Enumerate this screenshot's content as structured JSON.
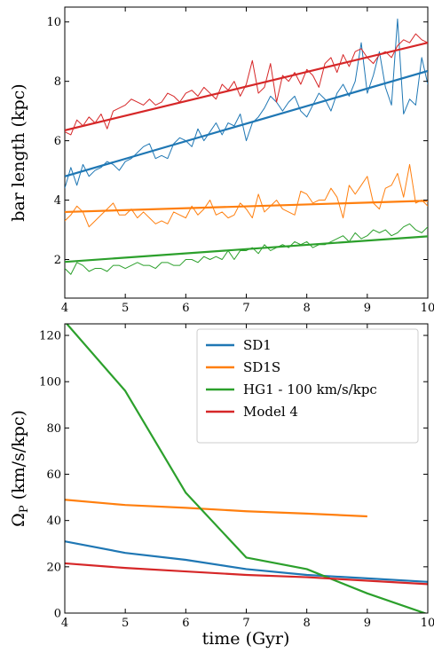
{
  "colors": {
    "SD1": "#1f77b4",
    "SD1S": "#ff7f0e",
    "HG1": "#2ca02c",
    "Model4": "#d62728"
  },
  "chart_data": [
    {
      "type": "line",
      "xlabel": "",
      "ylabel": "bar length (kpc)",
      "xlim": [
        4,
        10
      ],
      "ylim": [
        0.7,
        10.5
      ],
      "xticks": [
        "4",
        "5",
        "6",
        "7",
        "8",
        "9",
        "10"
      ],
      "yticks": [
        "2",
        "4",
        "6",
        "8",
        "10"
      ],
      "series": [
        {
          "key": "SD1",
          "x": [
            4.0,
            4.1,
            4.2,
            4.3,
            4.4,
            4.5,
            4.6,
            4.7,
            4.8,
            4.9,
            5.0,
            5.1,
            5.2,
            5.3,
            5.4,
            5.5,
            5.6,
            5.7,
            5.8,
            5.9,
            6.0,
            6.1,
            6.2,
            6.3,
            6.4,
            6.5,
            6.6,
            6.7,
            6.8,
            6.9,
            7.0,
            7.1,
            7.2,
            7.3,
            7.4,
            7.5,
            7.6,
            7.7,
            7.8,
            7.9,
            8.0,
            8.1,
            8.2,
            8.3,
            8.4,
            8.5,
            8.6,
            8.7,
            8.8,
            8.9,
            9.0,
            9.1,
            9.2,
            9.3,
            9.4,
            9.5,
            9.6,
            9.7,
            9.8,
            9.9,
            10.0
          ],
          "y": [
            4.4,
            5.1,
            4.5,
            5.2,
            4.8,
            5.0,
            5.1,
            5.3,
            5.2,
            5.0,
            5.3,
            5.4,
            5.6,
            5.8,
            5.9,
            5.4,
            5.5,
            5.4,
            5.9,
            6.1,
            6.0,
            5.8,
            6.4,
            6.0,
            6.3,
            6.6,
            6.2,
            6.6,
            6.5,
            6.9,
            6.0,
            6.6,
            6.8,
            7.1,
            7.5,
            7.3,
            7.0,
            7.3,
            7.5,
            7.0,
            6.8,
            7.2,
            7.6,
            7.4,
            7.0,
            7.6,
            7.9,
            7.5,
            8.0,
            9.3,
            7.6,
            8.2,
            9.0,
            7.8,
            7.2,
            10.1,
            6.9,
            7.4,
            7.2,
            8.8,
            7.9
          ]
        },
        {
          "key": "SD1",
          "x": [
            4,
            10
          ],
          "y": [
            4.8,
            8.35
          ]
        },
        {
          "key": "SD1S",
          "x": [
            4.0,
            4.1,
            4.2,
            4.3,
            4.4,
            4.5,
            4.6,
            4.7,
            4.8,
            4.9,
            5.0,
            5.1,
            5.2,
            5.3,
            5.4,
            5.5,
            5.6,
            5.7,
            5.8,
            5.9,
            6.0,
            6.1,
            6.2,
            6.3,
            6.4,
            6.5,
            6.6,
            6.7,
            6.8,
            6.9,
            7.0,
            7.1,
            7.2,
            7.3,
            7.4,
            7.5,
            7.6,
            7.7,
            7.8,
            7.9,
            8.0,
            8.1,
            8.2,
            8.3,
            8.4,
            8.5,
            8.6,
            8.7,
            8.8,
            8.9,
            9.0,
            9.1,
            9.2,
            9.3,
            9.4,
            9.5,
            9.6,
            9.7,
            9.8,
            9.9,
            10.0
          ],
          "y": [
            3.3,
            3.5,
            3.8,
            3.6,
            3.1,
            3.3,
            3.5,
            3.7,
            3.9,
            3.5,
            3.5,
            3.7,
            3.4,
            3.6,
            3.4,
            3.2,
            3.3,
            3.2,
            3.6,
            3.5,
            3.4,
            3.8,
            3.5,
            3.7,
            4.0,
            3.5,
            3.6,
            3.4,
            3.5,
            3.9,
            3.7,
            3.4,
            4.2,
            3.6,
            3.8,
            4.0,
            3.7,
            3.6,
            3.5,
            4.3,
            4.2,
            3.9,
            4.0,
            4.0,
            4.4,
            4.1,
            3.4,
            4.5,
            4.2,
            4.5,
            4.8,
            3.9,
            3.7,
            4.4,
            4.5,
            4.9,
            4.1,
            5.2,
            3.9,
            4.0,
            3.8
          ]
        },
        {
          "key": "SD1S",
          "x": [
            4,
            10
          ],
          "y": [
            3.6,
            3.98
          ]
        },
        {
          "key": "HG1",
          "x": [
            4.0,
            4.1,
            4.2,
            4.3,
            4.4,
            4.5,
            4.6,
            4.7,
            4.8,
            4.9,
            5.0,
            5.1,
            5.2,
            5.3,
            5.4,
            5.5,
            5.6,
            5.7,
            5.8,
            5.9,
            6.0,
            6.1,
            6.2,
            6.3,
            6.4,
            6.5,
            6.6,
            6.7,
            6.8,
            6.9,
            7.0,
            7.1,
            7.2,
            7.3,
            7.4,
            7.5,
            7.6,
            7.7,
            7.8,
            7.9,
            8.0,
            8.1,
            8.2,
            8.3,
            8.4,
            8.5,
            8.6,
            8.7,
            8.8,
            8.9,
            9.0,
            9.1,
            9.2,
            9.3,
            9.4,
            9.5,
            9.6,
            9.7,
            9.8,
            9.9,
            10.0
          ],
          "y": [
            1.7,
            1.5,
            1.9,
            1.8,
            1.6,
            1.7,
            1.7,
            1.6,
            1.8,
            1.8,
            1.7,
            1.8,
            1.9,
            1.8,
            1.8,
            1.7,
            1.9,
            1.9,
            1.8,
            1.8,
            2.0,
            2.0,
            1.9,
            2.1,
            2.0,
            2.1,
            2.0,
            2.3,
            2.0,
            2.3,
            2.3,
            2.4,
            2.2,
            2.5,
            2.3,
            2.4,
            2.5,
            2.4,
            2.6,
            2.5,
            2.6,
            2.4,
            2.5,
            2.5,
            2.6,
            2.7,
            2.8,
            2.6,
            2.9,
            2.7,
            2.8,
            3.0,
            2.9,
            3.0,
            2.8,
            2.9,
            3.1,
            3.2,
            3.0,
            2.9,
            3.1
          ]
        },
        {
          "key": "HG1",
          "x": [
            4,
            10
          ],
          "y": [
            1.92,
            2.78
          ]
        },
        {
          "key": "Model4",
          "x": [
            4.0,
            4.1,
            4.2,
            4.3,
            4.4,
            4.5,
            4.6,
            4.7,
            4.8,
            4.9,
            5.0,
            5.1,
            5.2,
            5.3,
            5.4,
            5.5,
            5.6,
            5.7,
            5.8,
            5.9,
            6.0,
            6.1,
            6.2,
            6.3,
            6.4,
            6.5,
            6.6,
            6.7,
            6.8,
            6.9,
            7.0,
            7.1,
            7.2,
            7.3,
            7.4,
            7.5,
            7.6,
            7.7,
            7.8,
            7.9,
            8.0,
            8.1,
            8.2,
            8.3,
            8.4,
            8.5,
            8.6,
            8.7,
            8.8,
            8.9,
            9.0,
            9.1,
            9.2,
            9.3,
            9.4,
            9.5,
            9.6,
            9.7,
            9.8,
            9.9,
            10.0
          ],
          "y": [
            6.3,
            6.2,
            6.7,
            6.5,
            6.8,
            6.6,
            6.9,
            6.4,
            7.0,
            7.1,
            7.2,
            7.4,
            7.3,
            7.2,
            7.4,
            7.2,
            7.3,
            7.6,
            7.5,
            7.3,
            7.6,
            7.7,
            7.5,
            7.8,
            7.6,
            7.4,
            7.9,
            7.7,
            8.0,
            7.5,
            7.9,
            8.7,
            7.6,
            7.8,
            8.6,
            7.3,
            8.2,
            8.0,
            8.3,
            7.9,
            8.4,
            8.2,
            7.8,
            8.6,
            8.8,
            8.3,
            8.9,
            8.5,
            9.0,
            9.1,
            8.8,
            8.6,
            8.9,
            9.0,
            8.8,
            9.2,
            9.4,
            9.3,
            9.6,
            9.4,
            9.3
          ]
        },
        {
          "key": "Model4",
          "x": [
            4,
            10
          ],
          "y": [
            6.35,
            9.3
          ]
        }
      ]
    },
    {
      "type": "line",
      "xlabel": "time (Gyr)",
      "ylabel": "Ω",
      "ylabel_sub": "P",
      "ylabel_rest": " (km/s/kpc)",
      "xlim": [
        4,
        10
      ],
      "ylim": [
        0,
        125
      ],
      "xticks": [
        "4",
        "5",
        "6",
        "7",
        "8",
        "9",
        "10"
      ],
      "yticks": [
        "0",
        "20",
        "40",
        "60",
        "80",
        "100",
        "120"
      ],
      "legend_position": "top-right",
      "series": [
        {
          "key": "SD1",
          "name": "SD1",
          "x": [
            4,
            5,
            6,
            7,
            8,
            9,
            10
          ],
          "y": [
            31,
            26,
            23,
            19,
            16.5,
            15,
            13.5
          ]
        },
        {
          "key": "SD1S",
          "name": "SD1S",
          "x": [
            4,
            5,
            6,
            7,
            8,
            9
          ],
          "y": [
            49,
            46.7,
            45.5,
            44,
            43,
            41.8
          ]
        },
        {
          "key": "HG1",
          "name": "HG1 - 100 km/s/kpc",
          "x": [
            4,
            5,
            6,
            7,
            8,
            9,
            10
          ],
          "y": [
            126,
            96,
            52,
            24,
            19,
            8.5,
            -0.5
          ]
        },
        {
          "key": "Model4",
          "name": "Model 4",
          "x": [
            4,
            5,
            6,
            7,
            8,
            9,
            10
          ],
          "y": [
            21.5,
            19.5,
            18,
            16.5,
            15.5,
            14,
            12.5
          ]
        }
      ]
    }
  ]
}
